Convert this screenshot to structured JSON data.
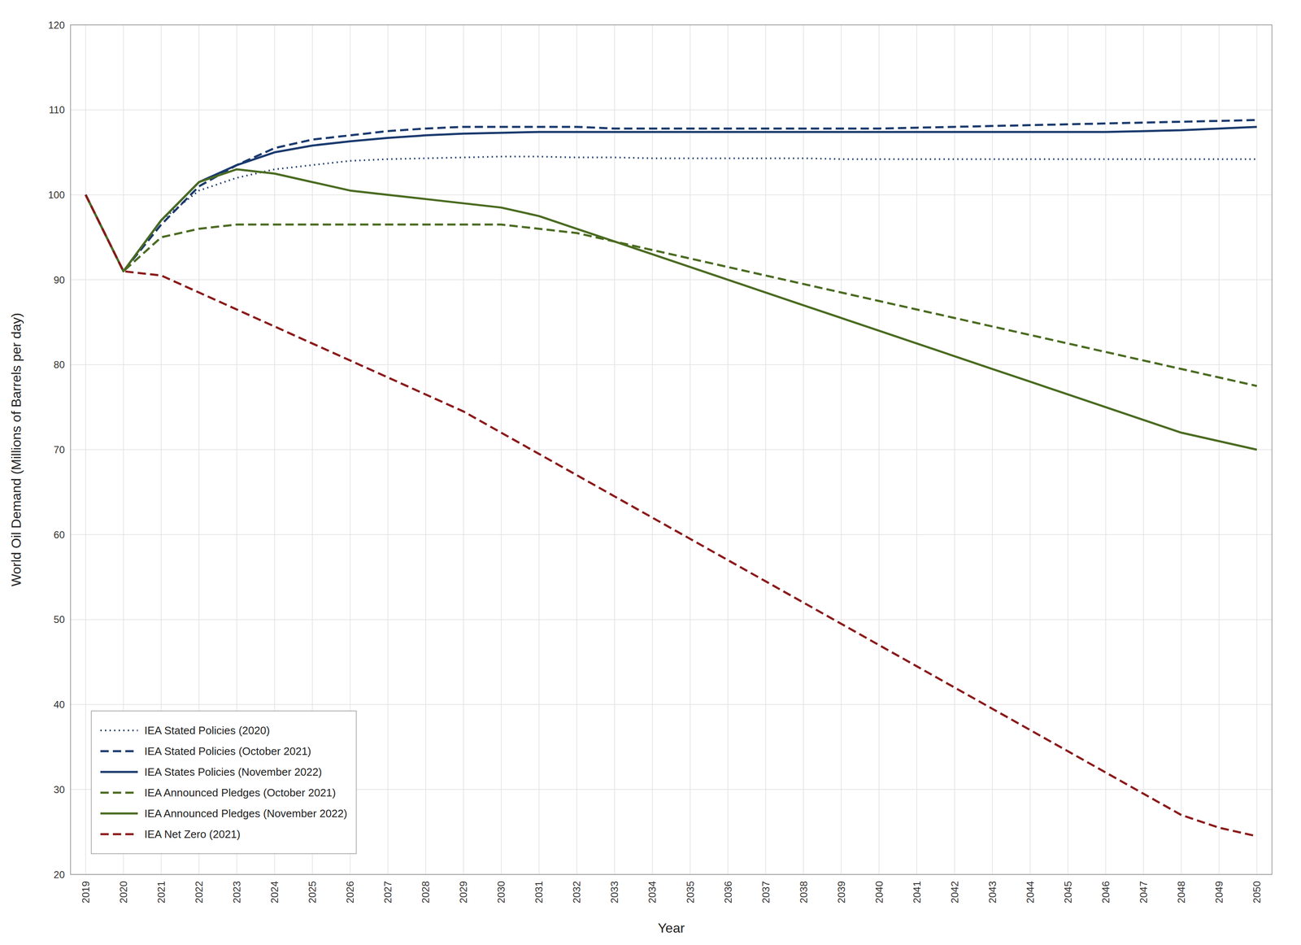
{
  "chart_data": {
    "type": "line",
    "xlabel": "Year",
    "ylabel": "World Oil Demand (Millions of Barrels per day)",
    "x": [
      2019,
      2020,
      2021,
      2022,
      2023,
      2024,
      2025,
      2026,
      2027,
      2028,
      2029,
      2030,
      2031,
      2032,
      2033,
      2034,
      2035,
      2036,
      2037,
      2038,
      2039,
      2040,
      2041,
      2042,
      2043,
      2044,
      2045,
      2046,
      2047,
      2048,
      2049,
      2050
    ],
    "xlim": [
      2018.6,
      2050.4
    ],
    "xticks": [
      2019,
      2020,
      2021,
      2022,
      2023,
      2024,
      2025,
      2026,
      2027,
      2028,
      2029,
      2030,
      2031,
      2032,
      2033,
      2034,
      2035,
      2036,
      2037,
      2038,
      2039,
      2040,
      2041,
      2042,
      2043,
      2044,
      2045,
      2046,
      2047,
      2048,
      2049,
      2050
    ],
    "ylim": [
      20,
      120
    ],
    "yticks": [
      20,
      30,
      40,
      50,
      60,
      70,
      80,
      90,
      100,
      110,
      120
    ],
    "grid": true,
    "legend": "lower left",
    "series": [
      {
        "name": "IEA Stated Policies (2020)",
        "color": "#1a3a6e",
        "line_style": "dotted",
        "values": [
          100,
          91,
          97,
          100.5,
          102,
          103,
          103.5,
          104,
          104.2,
          104.3,
          104.4,
          104.5,
          104.5,
          104.4,
          104.4,
          104.3,
          104.3,
          104.3,
          104.3,
          104.3,
          104.2,
          104.2,
          104.2,
          104.2,
          104.2,
          104.2,
          104.2,
          104.2,
          104.2,
          104.2,
          104.2,
          104.2
        ]
      },
      {
        "name": "IEA Stated Policies (October 2021)",
        "color": "#1a3a6e",
        "line_style": "dashed",
        "values": [
          100,
          91,
          96.5,
          101,
          103.5,
          105.5,
          106.5,
          107,
          107.5,
          107.8,
          108,
          108,
          108,
          108,
          107.8,
          107.8,
          107.8,
          107.8,
          107.8,
          107.8,
          107.8,
          107.8,
          107.9,
          108.0,
          108.1,
          108.2,
          108.3,
          108.4,
          108.5,
          108.6,
          108.7,
          108.8
        ]
      },
      {
        "name": "IEA States Policies (November 2022)",
        "color": "#1a3a6e",
        "line_style": "solid",
        "values": [
          100,
          91,
          97,
          101.5,
          103.5,
          105,
          105.8,
          106.3,
          106.7,
          107,
          107.2,
          107.3,
          107.4,
          107.4,
          107.4,
          107.4,
          107.4,
          107.4,
          107.4,
          107.4,
          107.4,
          107.4,
          107.4,
          107.4,
          107.4,
          107.4,
          107.4,
          107.4,
          107.5,
          107.6,
          107.8,
          108.0
        ]
      },
      {
        "name": "IEA Announced Pledges (October 2021)",
        "color": "#4a6b20",
        "line_style": "dashed",
        "values": [
          100,
          91,
          95,
          96,
          96.5,
          96.5,
          96.5,
          96.5,
          96.5,
          96.5,
          96.5,
          96.5,
          96,
          95.5,
          94.5,
          93.5,
          92.5,
          91.5,
          90.5,
          89.5,
          88.5,
          87.5,
          86.5,
          85.5,
          84.5,
          83.5,
          82.5,
          81.5,
          80.5,
          79.5,
          78.5,
          77.5
        ]
      },
      {
        "name": "IEA Announced Pledges (November 2022)",
        "color": "#4a6b20",
        "line_style": "solid",
        "values": [
          100,
          91,
          97,
          101.5,
          103,
          102.5,
          101.5,
          100.5,
          100,
          99.5,
          99,
          98.5,
          97.5,
          96,
          94.5,
          93,
          91.5,
          90,
          88.5,
          87,
          85.5,
          84,
          82.5,
          81,
          79.5,
          78,
          76.5,
          75,
          73.5,
          72,
          71,
          70.0
        ]
      },
      {
        "name": "IEA Net Zero (2021)",
        "color": "#8b1a1a",
        "line_style": "dashed",
        "values": [
          100,
          91,
          90.5,
          88.5,
          86.5,
          84.5,
          82.5,
          80.5,
          78.5,
          76.5,
          74.5,
          72,
          69.5,
          67,
          64.5,
          62,
          59.5,
          57,
          54.5,
          52,
          49.5,
          47,
          44.5,
          42,
          39.5,
          37,
          34.5,
          32,
          29.5,
          27,
          25.5,
          24.5
        ]
      }
    ]
  }
}
